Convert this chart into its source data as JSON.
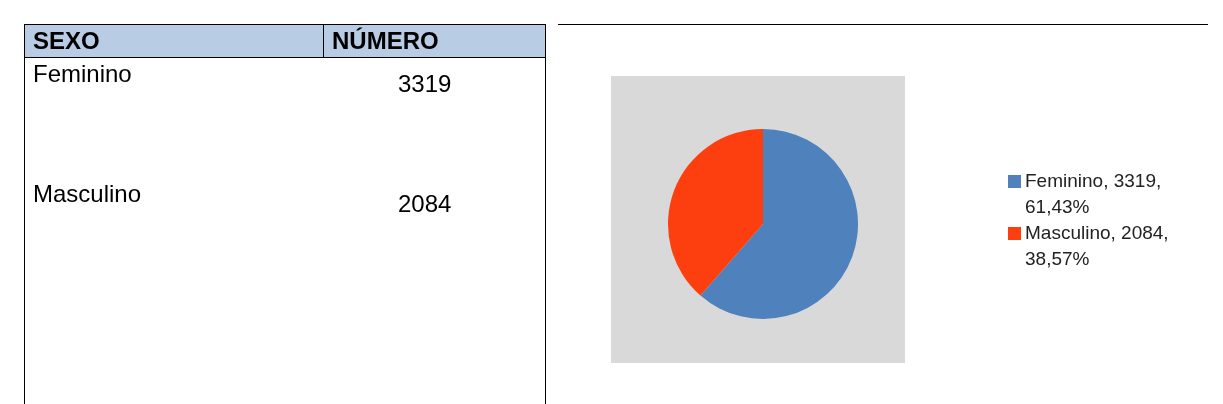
{
  "chart_data": {
    "type": "pie",
    "categories": [
      "Feminino, 3319, 61,43%",
      "Masculino, 2084, 38,57%"
    ],
    "values": [
      3319,
      2084
    ],
    "colors": [
      "#4f81bd",
      "#fd3f0f"
    ],
    "annotations": [
      "SEXO",
      "NÚMERO",
      "Feminino",
      "3319",
      "Masculino",
      "2084"
    ],
    "legend": "right"
  }
}
